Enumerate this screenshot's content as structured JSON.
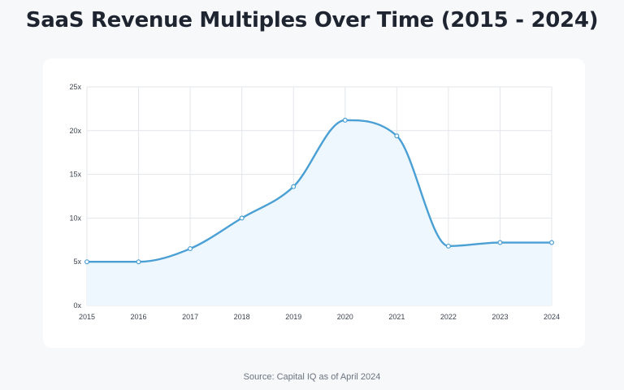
{
  "title": "SaaS Revenue Multiples Over Time (2015 - 2024)",
  "source": "Source: Capital IQ as of April 2024",
  "colors": {
    "line": "#4a9fd4",
    "area": "#eef7fd",
    "grid": "#e3e6ea",
    "background": "#f6f8fa"
  },
  "chart_data": {
    "type": "area",
    "x": [
      2015,
      2016,
      2017,
      2018,
      2019,
      2020,
      2021,
      2022,
      2023,
      2024
    ],
    "x_tick_labels": [
      "2015",
      "2016",
      "2017",
      "2018",
      "2019",
      "2020",
      "2021",
      "2022",
      "2023",
      "2024"
    ],
    "series": [
      {
        "values": [
          5.0,
          5.0,
          6.5,
          10.0,
          13.6,
          21.2,
          19.4,
          6.8,
          7.2,
          7.2
        ]
      }
    ],
    "ylim": [
      0,
      25
    ],
    "y_ticks": [
      0,
      5,
      10,
      15,
      20,
      25
    ],
    "y_tick_labels": [
      "0x",
      "5x",
      "10x",
      "15x",
      "20x",
      "25x"
    ],
    "grid": true,
    "legend": "none",
    "smooth": true
  }
}
